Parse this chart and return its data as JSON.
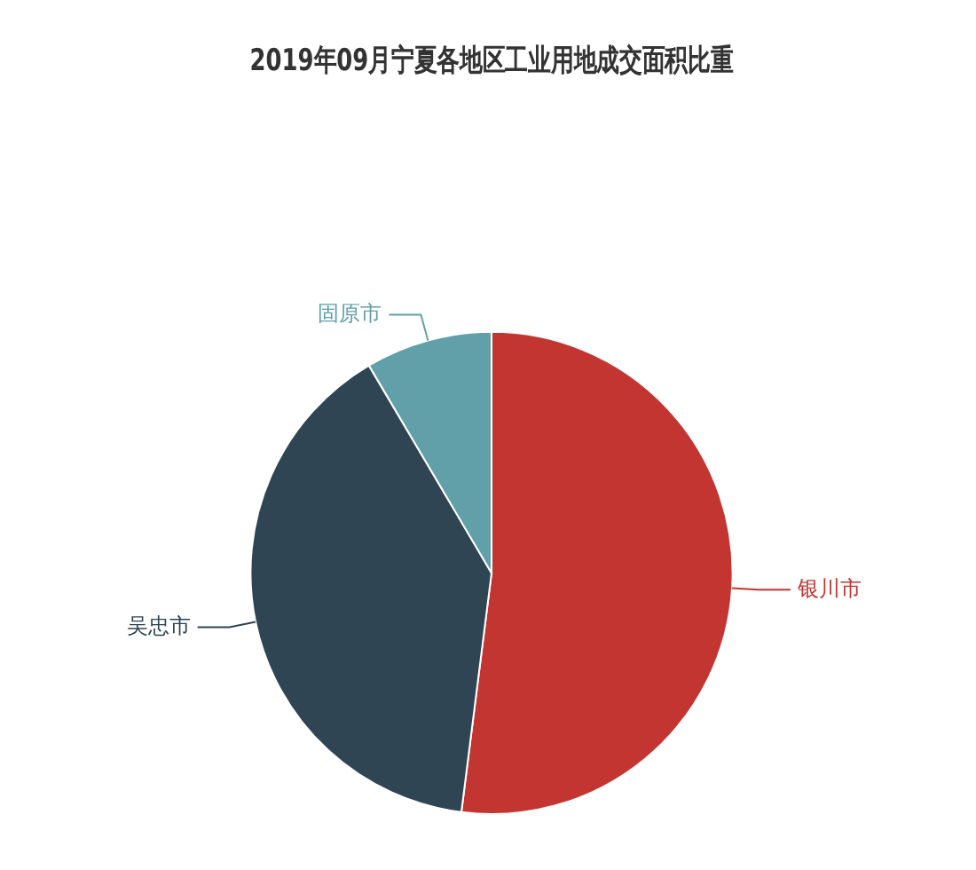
{
  "chart_data": {
    "type": "pie",
    "title": "2019年09月宁夏各地区工业用地成交面积比重",
    "categories": [
      "银川市",
      "吴忠市",
      "固原市"
    ],
    "values": [
      52,
      39.5,
      8.5
    ],
    "colors": [
      "#c23531",
      "#2f4554",
      "#61a0a8"
    ],
    "legend": false
  }
}
